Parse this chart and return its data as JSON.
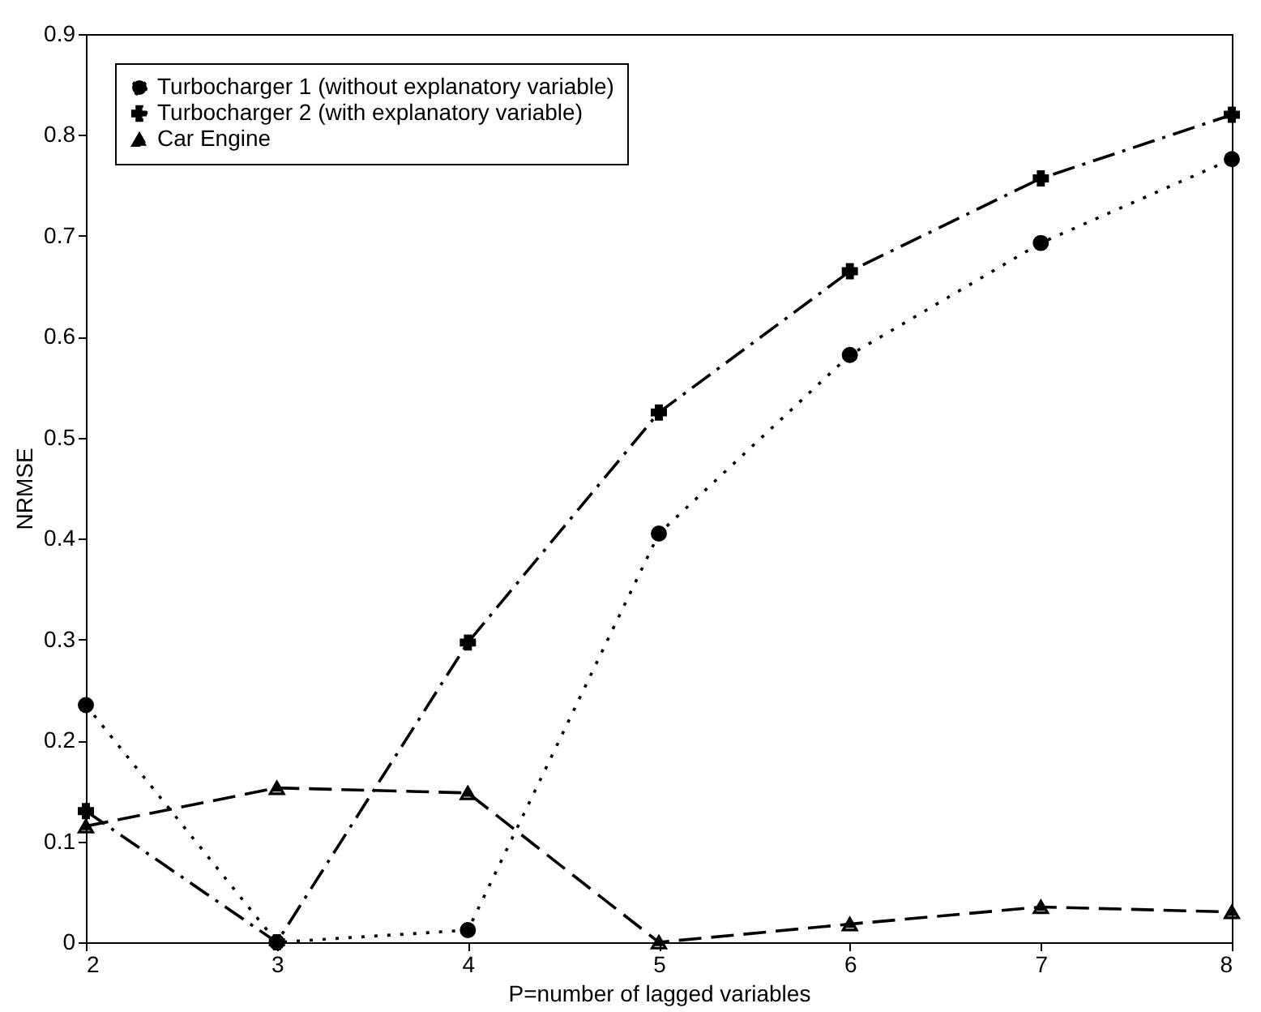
{
  "chart_data": {
    "type": "line",
    "xlabel": "P=number of lagged variables",
    "ylabel": "NRMSE",
    "x": [
      2,
      3,
      4,
      5,
      6,
      7,
      8
    ],
    "series": [
      {
        "name": "Turbocharger 1 (without explanatory variable)",
        "color": "#000000",
        "marker": "circle",
        "line_style": "dotted",
        "values": [
          0.235,
          0.0,
          0.012,
          0.405,
          0.582,
          0.693,
          0.776
        ]
      },
      {
        "name": "Turbocharger 2 (with explanatory variable)",
        "color": "#000000",
        "marker": "cross",
        "line_style": "dashdot",
        "values": [
          0.13,
          0.0,
          0.297,
          0.525,
          0.665,
          0.757,
          0.82
        ]
      },
      {
        "name": "Car Engine",
        "color": "#000000",
        "marker": "triangle",
        "line_style": "dashed",
        "values": [
          0.115,
          0.153,
          0.148,
          0.0,
          0.018,
          0.035,
          0.03
        ]
      }
    ],
    "xlim": [
      2,
      8
    ],
    "xticks": [
      2,
      3,
      4,
      5,
      6,
      7,
      8
    ],
    "ylim": [
      0,
      0.9
    ],
    "yticks": [
      0,
      0.1,
      0.2,
      0.3,
      0.4,
      0.5,
      0.6,
      0.7,
      0.8,
      0.9
    ],
    "legend": "top left",
    "grid": false
  }
}
